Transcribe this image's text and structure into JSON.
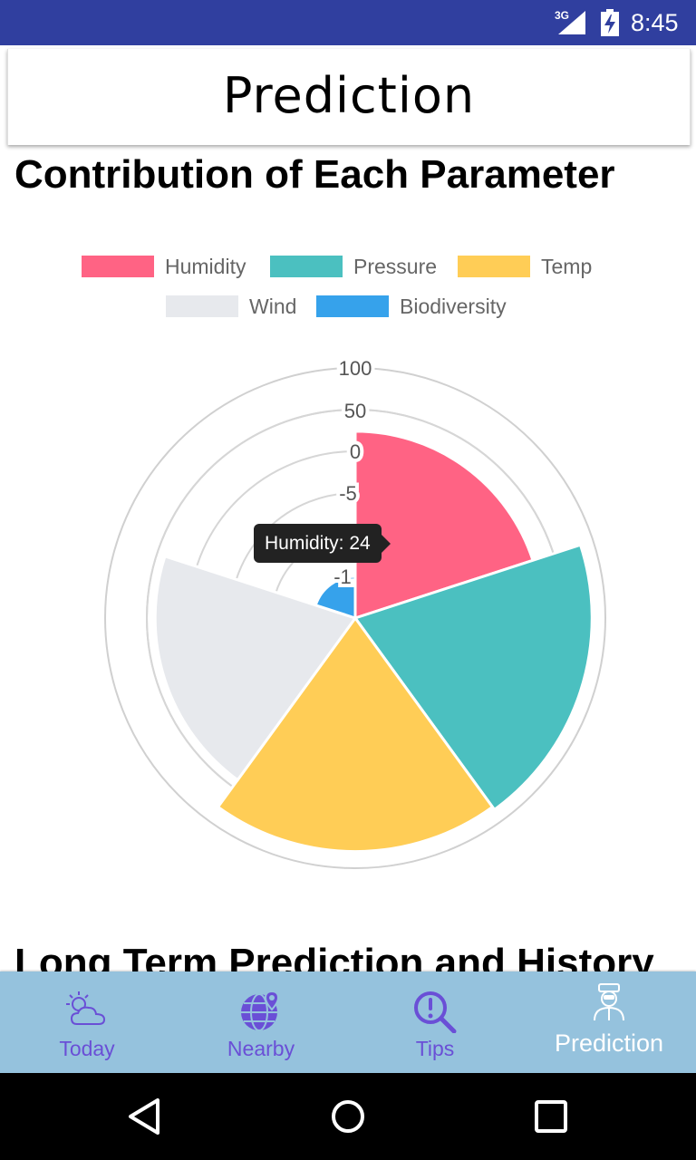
{
  "status_bar": {
    "network": "3G",
    "time": "8:45"
  },
  "header": {
    "title": "Prediction"
  },
  "section": {
    "title": "Contribution of Each Parameter",
    "next_title": "Long Term Prediction and History"
  },
  "legend": [
    {
      "label": "Humidity",
      "color": "#ff6384"
    },
    {
      "label": "Pressure",
      "color": "#4bc0c0"
    },
    {
      "label": "Temp",
      "color": "#ffcd56"
    },
    {
      "label": "Wind",
      "color": "#e7e9ed"
    },
    {
      "label": "Biodiversity",
      "color": "#36a2eb"
    }
  ],
  "chart_data": {
    "type": "polarArea",
    "categories": [
      "Humidity",
      "Pressure",
      "Temp",
      "Wind",
      "Biodiversity"
    ],
    "values": [
      24,
      84,
      80,
      40,
      -150
    ],
    "colors": [
      "#ff6384",
      "#4bc0c0",
      "#ffcd56",
      "#e7e9ed",
      "#36a2eb"
    ],
    "r_min": -200,
    "r_max": 100,
    "tick_labels": [
      "-1",
      "-1",
      "-5",
      "0",
      "50",
      "100"
    ],
    "tooltip": "Humidity: 24",
    "legend_position": "top"
  },
  "bottom_nav": [
    {
      "label": "Today",
      "icon": "weather-cloud-sun-icon",
      "active": false
    },
    {
      "label": "Nearby",
      "icon": "globe-location-icon",
      "active": false
    },
    {
      "label": "Tips",
      "icon": "search-exclamation-icon",
      "active": false
    },
    {
      "label": "Prediction",
      "icon": "scientist-icon",
      "active": true
    }
  ],
  "system_nav": {
    "back": "back-icon",
    "home": "home-icon",
    "recents": "recents-icon"
  }
}
